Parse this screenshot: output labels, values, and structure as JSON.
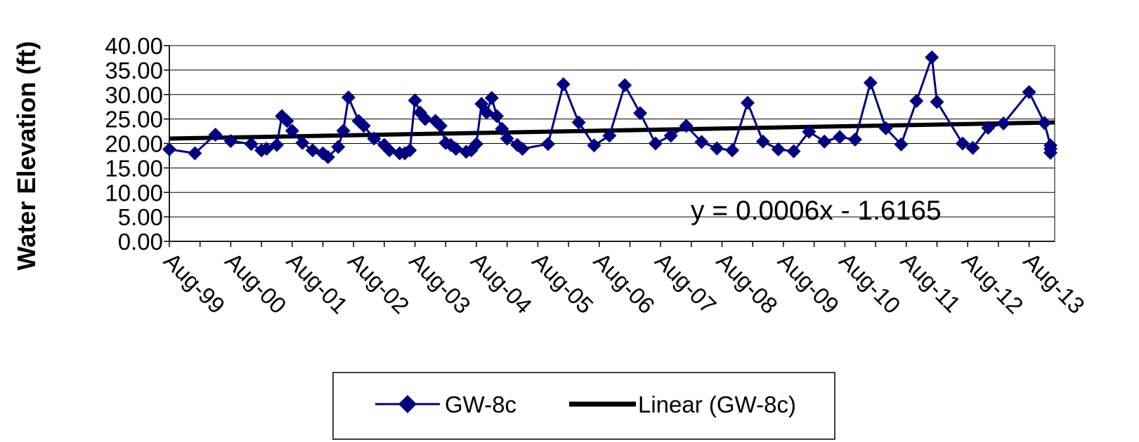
{
  "chart_data": {
    "type": "line",
    "title": "",
    "xlabel": "",
    "ylabel": "Water Elevation (ft)",
    "ylim": [
      0,
      40
    ],
    "y_ticks": [
      "0.00",
      "5.00",
      "10.00",
      "15.00",
      "20.00",
      "25.00",
      "30.00",
      "35.00",
      "40.00"
    ],
    "x_tick_labels": [
      "Aug-99",
      "Aug-00",
      "Aug-01",
      "Aug-02",
      "Aug-03",
      "Aug-04",
      "Aug-05",
      "Aug-06",
      "Aug-07",
      "Aug-08",
      "Aug-09",
      "Aug-10",
      "Aug-11",
      "Aug-12",
      "Aug-13"
    ],
    "xlim": [
      "1999-08",
      "2013-12"
    ],
    "grid": "horizontal",
    "series": [
      {
        "name": "GW-8c",
        "color": "#000080",
        "marker": "diamond",
        "points": [
          [
            "1999-08",
            18.8
          ],
          [
            "2000-01",
            18.0
          ],
          [
            "2000-05",
            21.8
          ],
          [
            "2000-08",
            20.5
          ],
          [
            "2000-12",
            19.9
          ],
          [
            "2001-02",
            18.6
          ],
          [
            "2001-03",
            18.9
          ],
          [
            "2001-05",
            19.7
          ],
          [
            "2001-06",
            25.6
          ],
          [
            "2001-07",
            24.6
          ],
          [
            "2001-08",
            22.6
          ],
          [
            "2001-10",
            20.1
          ],
          [
            "2001-12",
            18.6
          ],
          [
            "2002-02",
            18.0
          ],
          [
            "2002-03",
            17.2
          ],
          [
            "2002-05",
            19.3
          ],
          [
            "2002-06",
            22.6
          ],
          [
            "2002-07",
            29.4
          ],
          [
            "2002-09",
            24.6
          ],
          [
            "2002-10",
            23.6
          ],
          [
            "2002-12",
            21.0
          ],
          [
            "2003-02",
            19.7
          ],
          [
            "2003-03",
            18.6
          ],
          [
            "2003-05",
            18.0
          ],
          [
            "2003-06",
            18.0
          ],
          [
            "2003-07",
            18.6
          ],
          [
            "2003-08",
            28.8
          ],
          [
            "2003-09",
            26.3
          ],
          [
            "2003-10",
            25.0
          ],
          [
            "2003-12",
            24.6
          ],
          [
            "2004-01",
            23.6
          ],
          [
            "2004-02",
            20.1
          ],
          [
            "2004-03",
            19.7
          ],
          [
            "2004-04",
            18.9
          ],
          [
            "2004-06",
            18.3
          ],
          [
            "2004-07",
            18.6
          ],
          [
            "2004-08",
            19.9
          ],
          [
            "2004-09",
            28.1
          ],
          [
            "2004-10",
            26.3
          ],
          [
            "2004-11",
            29.3
          ],
          [
            "2004-12",
            25.6
          ],
          [
            "2005-01",
            23.0
          ],
          [
            "2005-02",
            21.0
          ],
          [
            "2005-04",
            19.7
          ],
          [
            "2005-05",
            18.9
          ],
          [
            "2005-10",
            19.9
          ],
          [
            "2006-01",
            32.1
          ],
          [
            "2006-04",
            24.3
          ],
          [
            "2006-07",
            19.6
          ],
          [
            "2006-10",
            21.6
          ],
          [
            "2007-01",
            31.9
          ],
          [
            "2007-04",
            26.2
          ],
          [
            "2007-07",
            20.0
          ],
          [
            "2007-10",
            21.6
          ],
          [
            "2008-01",
            23.6
          ],
          [
            "2008-04",
            20.3
          ],
          [
            "2008-07",
            19.0
          ],
          [
            "2008-10",
            18.6
          ],
          [
            "2009-01",
            28.3
          ],
          [
            "2009-04",
            20.4
          ],
          [
            "2009-07",
            18.8
          ],
          [
            "2009-10",
            18.4
          ],
          [
            "2010-01",
            22.4
          ],
          [
            "2010-04",
            20.4
          ],
          [
            "2010-07",
            21.3
          ],
          [
            "2010-10",
            20.8
          ],
          [
            "2011-01",
            32.4
          ],
          [
            "2011-04",
            23.1
          ],
          [
            "2011-07",
            19.8
          ],
          [
            "2011-10",
            28.7
          ],
          [
            "2012-01",
            37.6
          ],
          [
            "2012-02",
            28.5
          ],
          [
            "2012-07",
            20.0
          ],
          [
            "2012-09",
            19.1
          ],
          [
            "2012-12",
            23.2
          ],
          [
            "2013-03",
            24.1
          ],
          [
            "2013-08",
            30.5
          ],
          [
            "2013-11",
            24.2
          ],
          [
            "2014-02",
            19.6
          ],
          [
            "2014-05",
            18.9
          ],
          [
            "2014-08",
            18.1
          ]
        ]
      },
      {
        "name": "Linear (GW-8c)",
        "color": "#000000",
        "trend": {
          "start": [
            "1999-08",
            21.0
          ],
          "end": [
            "2014-08",
            24.3
          ]
        }
      }
    ],
    "annotation": "y = 0.0006x - 1.6165",
    "legend": {
      "position": "bottom",
      "entries": [
        "GW-8c",
        "Linear (GW-8c)"
      ]
    }
  }
}
